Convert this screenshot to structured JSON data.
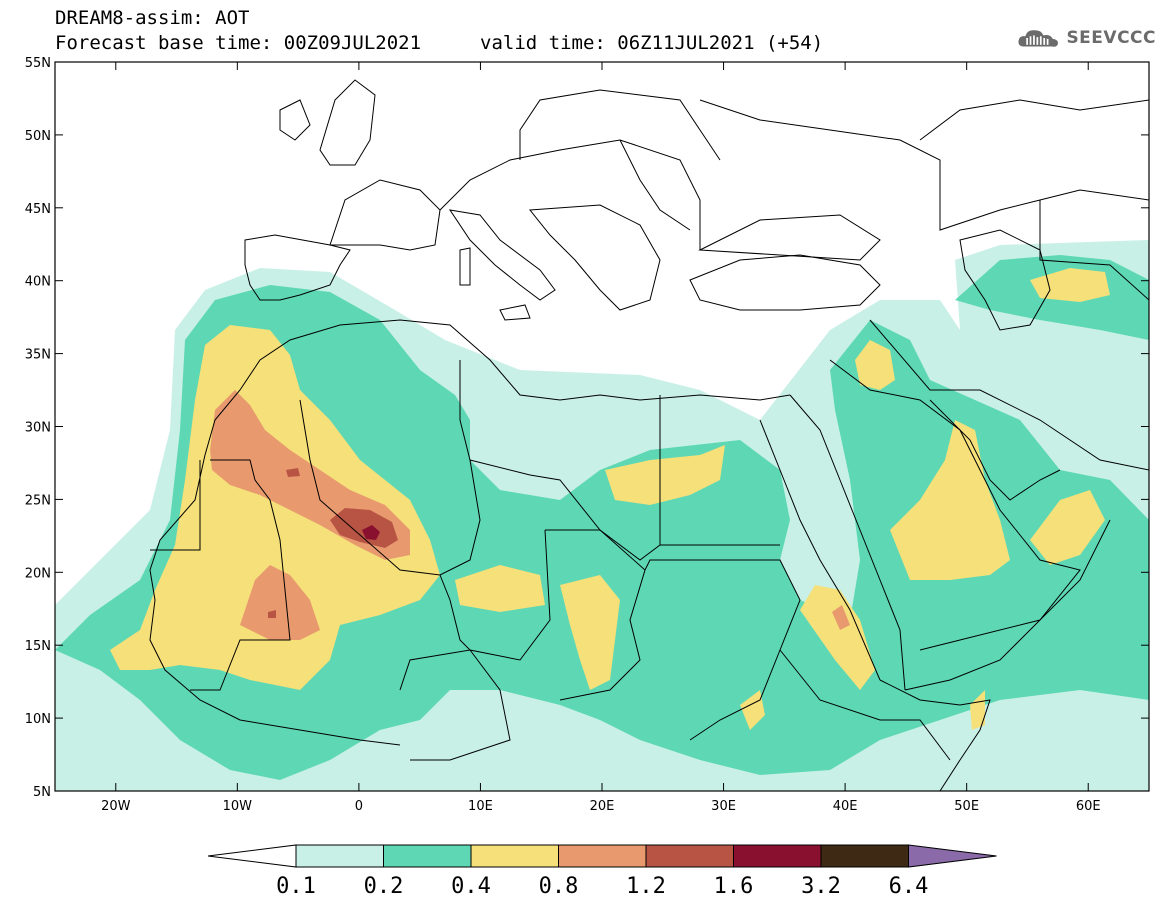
{
  "header": {
    "title": "DREAM8-assim: AOT",
    "base_time": "Forecast base time: 00Z09JUL2021",
    "valid_time": "valid time: 06Z11JUL2021 (+54)",
    "logo_text": "SEEVCCC"
  },
  "map": {
    "lat_labels": [
      "55N",
      "50N",
      "45N",
      "40N",
      "35N",
      "30N",
      "25N",
      "20N",
      "15N",
      "10N",
      "5N"
    ],
    "lat_values": [
      55,
      50,
      45,
      40,
      35,
      30,
      25,
      20,
      15,
      10,
      5
    ],
    "lon_labels": [
      "20W",
      "10W",
      "0",
      "10E",
      "20E",
      "30E",
      "40E",
      "50E",
      "60E"
    ],
    "lon_values": [
      -20,
      -10,
      0,
      10,
      20,
      30,
      40,
      50,
      60
    ],
    "extent": {
      "lon_min": -25,
      "lon_max": 65,
      "lat_min": 5,
      "lat_max": 55
    }
  },
  "colorbar": {
    "labels": [
      "0.1",
      "0.2",
      "0.4",
      "0.8",
      "1.2",
      "1.6",
      "3.2",
      "6.4"
    ],
    "colors": [
      "#c8f0e6",
      "#5ed8b4",
      "#f5e07a",
      "#e89a6e",
      "#b85444",
      "#8a1030",
      "#3e2a14",
      "#8a6aa8"
    ],
    "under_color": "#ffffff"
  },
  "colors": {
    "c01": "#c8f0e6",
    "c02": "#5ed8b4",
    "c04": "#f5e07a",
    "c08": "#e89a6e",
    "c12": "#b85444",
    "c16": "#8a1030"
  }
}
